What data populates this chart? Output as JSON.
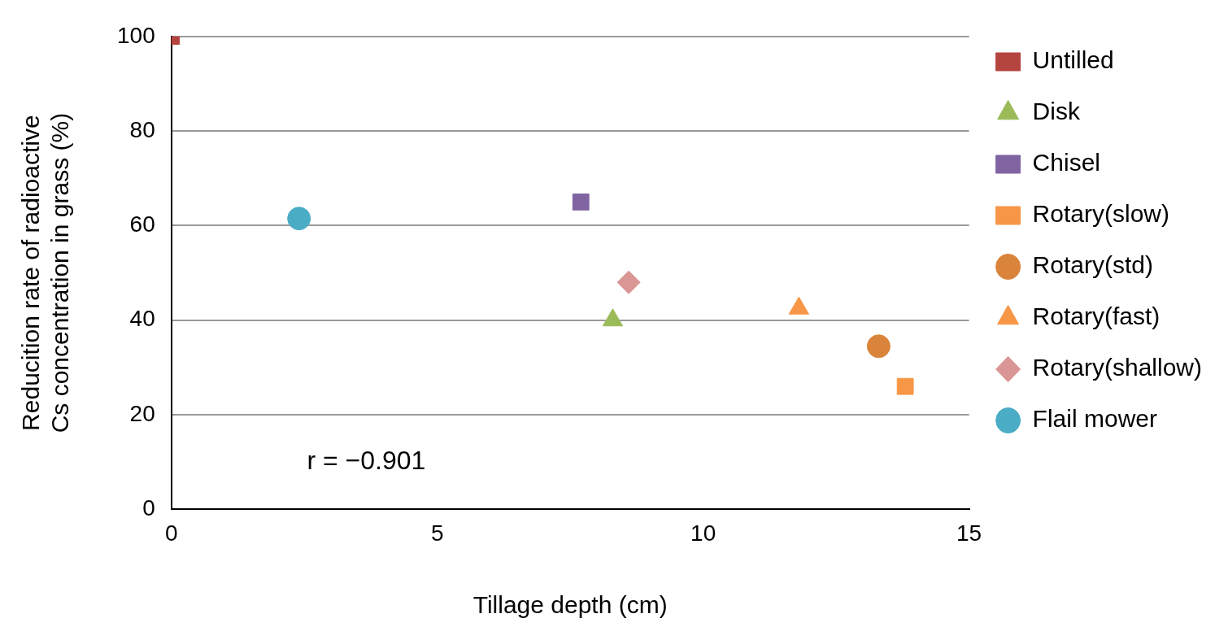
{
  "chart_data": {
    "type": "scatter",
    "xlabel": "Tillage depth (cm)",
    "ylabel": "Reducition rate of radioactive Cs concentration in grass (%)",
    "xlim": [
      0,
      15
    ],
    "xticks": [
      0,
      5,
      10,
      15
    ],
    "ylim": [
      0,
      100
    ],
    "yticks": [
      0,
      20,
      40,
      60,
      80,
      100
    ],
    "grid": "y",
    "legend": "right",
    "annotations": [
      "r = −0.901"
    ],
    "series": [
      {
        "name": "Untilled",
        "color": "#b5443f",
        "marker": "square",
        "x": [
          0
        ],
        "values": [
          100
        ]
      },
      {
        "name": "Disk",
        "color": "#9bbb59",
        "marker": "triangle",
        "x": [
          8.3
        ],
        "values": [
          40
        ]
      },
      {
        "name": "Chisel",
        "color": "#8064a2",
        "marker": "square",
        "x": [
          7.7
        ],
        "values": [
          65
        ]
      },
      {
        "name": "Rotary(slow)",
        "color": "#f79646",
        "marker": "square",
        "x": [
          13.8
        ],
        "values": [
          26
        ]
      },
      {
        "name": "Rotary(std)",
        "color": "#d9843a",
        "marker": "circle",
        "x": [
          13.3
        ],
        "values": [
          34.5
        ]
      },
      {
        "name": "Rotary(fast)",
        "color": "#f79646",
        "marker": "triangle",
        "x": [
          11.8
        ],
        "values": [
          42.5
        ]
      },
      {
        "name": "Rotary(shallow)",
        "color": "#d99694",
        "marker": "diamond",
        "x": [
          8.6
        ],
        "values": [
          48
        ]
      },
      {
        "name": "Flail mower",
        "color": "#4bacc6",
        "marker": "circle",
        "x": [
          2.4
        ],
        "values": [
          61.5
        ]
      }
    ]
  }
}
